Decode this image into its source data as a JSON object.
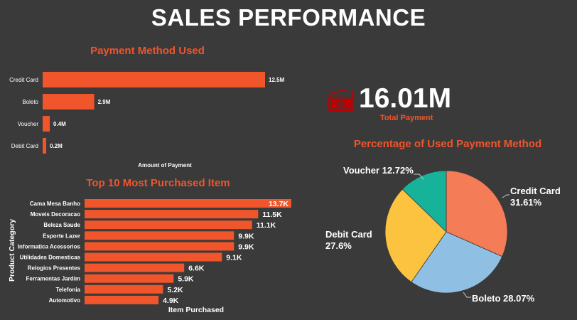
{
  "page_title": "SALES PERFORMANCE",
  "kpi": {
    "value": "16.01M",
    "label": "Total Payment",
    "icon": "money-icon"
  },
  "colors": {
    "background": "#3a3a3a",
    "accent": "#f0552b",
    "bar": "#f0552b",
    "pie": [
      "#f47c56",
      "#8fc0e4",
      "#fcc341",
      "#16b39a"
    ]
  },
  "chart_data": [
    {
      "type": "bar",
      "orientation": "horizontal",
      "title": "Payment Method Used",
      "xlabel": "Amount of Payment",
      "ylabel": "",
      "categories": [
        "Credit Card",
        "Boleto",
        "Voucher",
        "Debit Card"
      ],
      "values": [
        12.5,
        2.9,
        0.4,
        0.2
      ],
      "value_labels": [
        "12.5M",
        "2.9M",
        "0.4M",
        "0.2M"
      ],
      "unit": "M",
      "xlim": [
        0,
        12.5
      ]
    },
    {
      "type": "bar",
      "orientation": "horizontal",
      "title": "Top 10 Most Purchased Item",
      "xlabel": "Item Purchased",
      "ylabel": "Product Category",
      "categories": [
        "Cama Mesa Banho",
        "Moveis Decoracao",
        "Beleza Saude",
        "Esporte Lazer",
        "Informatica Acessorios",
        "Utilidades Domesticas",
        "Relogios Presentes",
        "Ferramentas Jardim",
        "Telefonia",
        "Automotivo"
      ],
      "values": [
        13.7,
        11.5,
        11.1,
        9.9,
        9.9,
        9.1,
        6.6,
        5.9,
        5.2,
        4.9
      ],
      "value_labels": [
        "13.7K",
        "11.5K",
        "11.1K",
        "9.9K",
        "9.9K",
        "9.1K",
        "6.6K",
        "5.9K",
        "5.2K",
        "4.9K"
      ],
      "unit": "K",
      "xlim": [
        0,
        13.7
      ]
    },
    {
      "type": "pie",
      "title": "Percentage of Used Payment Method",
      "labels": [
        "Credit Card",
        "Boleto",
        "Debit Card",
        "Voucher"
      ],
      "values": [
        31.61,
        28.07,
        27.6,
        12.72
      ],
      "value_labels": [
        "31.61%",
        "28.07%",
        "27.6%",
        "12.72%"
      ],
      "legend": "none"
    }
  ]
}
